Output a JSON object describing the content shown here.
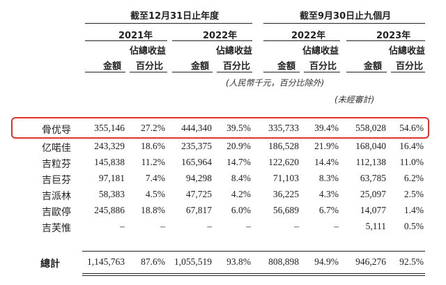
{
  "header": {
    "period_full_year": "截至12月31日止年度",
    "period_nine_months": "截至9月30日止九個月",
    "years": [
      "2021年",
      "2022年",
      "2022年",
      "2023年"
    ],
    "pct_label_line1": "佔總收益",
    "pct_label_line2": "百分比",
    "amount_label": "金額",
    "unit_note": "(人民幣千元，百分比除外)",
    "unaudited_note": "(未經審計)"
  },
  "rows": [
    {
      "name": "骨优导",
      "v": [
        "355,146",
        "27.2%",
        "444,340",
        "39.5%",
        "335,733",
        "39.4%",
        "558,028",
        "54.6%"
      ],
      "highlighted": true
    },
    {
      "name": "亿喏佳",
      "v": [
        "243,329",
        "18.6%",
        "235,375",
        "20.9%",
        "186,528",
        "21.9%",
        "168,040",
        "16.4%"
      ]
    },
    {
      "name": "吉粒芬",
      "v": [
        "145,838",
        "11.2%",
        "165,964",
        "14.7%",
        "122,620",
        "14.4%",
        "112,138",
        "11.0%"
      ]
    },
    {
      "name": "吉巨芬",
      "v": [
        "97,181",
        "7.4%",
        "94,298",
        "8.4%",
        "71,103",
        "8.3%",
        "63,785",
        "6.2%"
      ]
    },
    {
      "name": "吉派林",
      "v": [
        "58,383",
        "4.5%",
        "47,725",
        "4.2%",
        "36,225",
        "4.3%",
        "25,097",
        "2.5%"
      ]
    },
    {
      "name": "吉歐停",
      "v": [
        "245,886",
        "18.8%",
        "67,817",
        "6.0%",
        "56,689",
        "6.7%",
        "14,077",
        "1.4%"
      ]
    },
    {
      "name": "吉芙惟",
      "v": [
        "–",
        "–",
        "–",
        "–",
        "–",
        "–",
        "5,111",
        "0.5%"
      ]
    }
  ],
  "total": {
    "name": "總計",
    "v": [
      "1,145,763",
      "87.6%",
      "1,055,519",
      "93.8%",
      "808,898",
      "94.9%",
      "946,276",
      "92.5%"
    ]
  },
  "colors": {
    "highlight_border": "#e3332f",
    "text": "#222222"
  }
}
